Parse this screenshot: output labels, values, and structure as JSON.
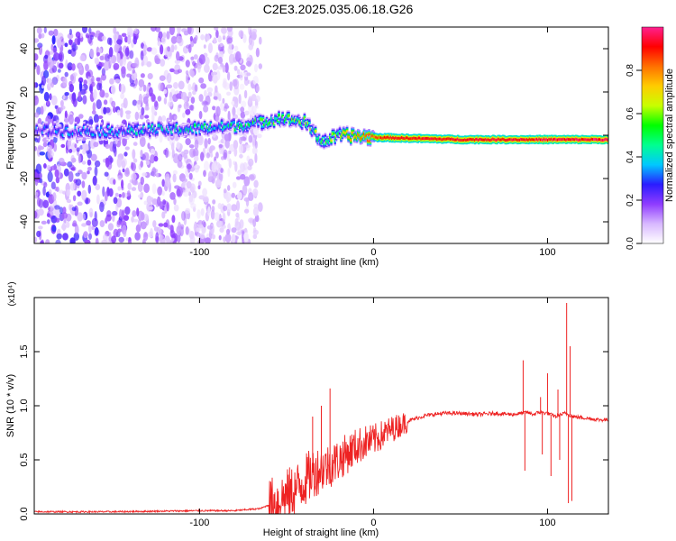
{
  "title": "C2E3.2025.035.06.18.G26",
  "chart_data": [
    {
      "type": "heatmap",
      "xlabel": "Height of straight line (km)",
      "ylabel": "Frequency (Hz)",
      "xlim": [
        -195,
        135
      ],
      "ylim": [
        -50,
        50
      ],
      "xticks": [
        -100,
        0,
        100
      ],
      "xtick_labels": [
        "-100",
        "0",
        "100"
      ],
      "yticks": [
        -40,
        -20,
        0,
        20,
        40
      ],
      "ytick_labels": [
        "-40",
        "-20",
        "0",
        "20",
        "40"
      ],
      "colorbar": {
        "label": "Normalized spectral amplitude",
        "range": [
          0.0,
          1.0
        ],
        "ticks": [
          0.0,
          0.2,
          0.4,
          0.6,
          0.8
        ],
        "tick_labels": [
          "0.0",
          "0.2",
          "0.4",
          "0.6",
          "0.8"
        ],
        "colors": [
          "#ffffff",
          "#d8b8ff",
          "#8f3cff",
          "#2a1cff",
          "#00c8ff",
          "#00ff90",
          "#00ff00",
          "#c8ff00",
          "#ffcc00",
          "#ff7000",
          "#ff0000",
          "#ff2090"
        ]
      },
      "ridge": [
        {
          "x": -195,
          "f": 2
        },
        {
          "x": -150,
          "f": 2
        },
        {
          "x": -100,
          "f": 3
        },
        {
          "x": -70,
          "f": 5
        },
        {
          "x": -55,
          "f": 8
        },
        {
          "x": -40,
          "f": 6
        },
        {
          "x": -30,
          "f": -3
        },
        {
          "x": -20,
          "f": 0
        },
        {
          "x": 0,
          "f": -1
        },
        {
          "x": 50,
          "f": -2
        },
        {
          "x": 100,
          "f": -2
        },
        {
          "x": 135,
          "f": -2
        }
      ],
      "ridge_strength": [
        {
          "x": -195,
          "a": 0.35
        },
        {
          "x": -120,
          "a": 0.5
        },
        {
          "x": -60,
          "a": 0.6
        },
        {
          "x": -25,
          "a": 0.7
        },
        {
          "x": -5,
          "a": 0.85
        },
        {
          "x": 10,
          "a": 0.95
        },
        {
          "x": 135,
          "a": 1.0
        }
      ],
      "noise_extent_x": [
        -195,
        -65
      ]
    },
    {
      "type": "line",
      "xlabel": "Height of straight line (km)",
      "ylabel": "SNR (10 * v/v)",
      "y_multiplier": "(x10⁴)",
      "xlim": [
        -195,
        135
      ],
      "ylim": [
        0.0,
        2.0
      ],
      "xticks": [
        -100,
        0,
        100
      ],
      "xtick_labels": [
        "-100",
        "0",
        "100"
      ],
      "yticks": [
        0.0,
        0.5,
        1.0,
        1.5
      ],
      "ytick_labels": [
        "0.0",
        "0.5",
        "1.0",
        "1.5"
      ],
      "color": "#ee2222",
      "series": [
        {
          "x": [
            -195,
            -150,
            -100,
            -80,
            -65,
            -55,
            -45,
            -40,
            -35,
            -30,
            -25,
            -20,
            -15,
            -10,
            -5,
            0,
            10,
            20,
            30,
            40,
            50,
            60,
            70,
            80,
            85,
            88,
            92,
            95,
            100,
            105,
            108,
            110,
            112,
            115,
            120,
            125,
            130,
            135
          ],
          "y": [
            0.02,
            0.02,
            0.03,
            0.03,
            0.05,
            0.12,
            0.22,
            0.3,
            0.38,
            0.42,
            0.45,
            0.5,
            0.56,
            0.62,
            0.66,
            0.68,
            0.78,
            0.86,
            0.91,
            0.93,
            0.93,
            0.92,
            0.93,
            0.92,
            0.93,
            0.94,
            0.92,
            0.94,
            0.93,
            0.9,
            0.92,
            0.93,
            0.92,
            0.9,
            0.89,
            0.88,
            0.87,
            0.87
          ]
        }
      ],
      "spikes": [
        {
          "x": -25,
          "y": 1.16
        },
        {
          "x": -30,
          "y": 1.0
        },
        {
          "x": -35,
          "y": 0.9
        },
        {
          "x": 86,
          "y": 1.42
        },
        {
          "x": 87,
          "y": 0.4
        },
        {
          "x": 96,
          "y": 1.08
        },
        {
          "x": 97,
          "y": 0.55
        },
        {
          "x": 100,
          "y": 1.3
        },
        {
          "x": 102,
          "y": 0.35
        },
        {
          "x": 106,
          "y": 1.15
        },
        {
          "x": 107,
          "y": 0.5
        },
        {
          "x": 111,
          "y": 1.95
        },
        {
          "x": 112,
          "y": 0.1
        },
        {
          "x": 113,
          "y": 1.55
        },
        {
          "x": 114,
          "y": 0.12
        }
      ]
    }
  ]
}
